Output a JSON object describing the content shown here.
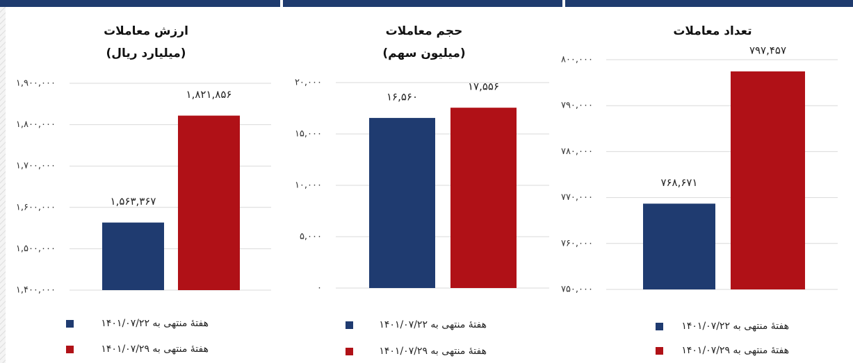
{
  "chart_data": [
    {
      "type": "bar",
      "title": "ارزش معاملات",
      "subtitle": "(میلیارد ریال)",
      "ylim": [
        1400000,
        1900000
      ],
      "yticks": [
        {
          "value": 1400000,
          "label": "۱,۴۰۰,۰۰۰"
        },
        {
          "value": 1500000,
          "label": "۱,۵۰۰,۰۰۰"
        },
        {
          "value": 1600000,
          "label": "۱,۶۰۰,۰۰۰"
        },
        {
          "value": 1700000,
          "label": "۱,۷۰۰,۰۰۰"
        },
        {
          "value": 1800000,
          "label": "۱,۸۰۰,۰۰۰"
        },
        {
          "value": 1900000,
          "label": "۱,۹۰۰,۰۰۰"
        }
      ],
      "grid": true,
      "series": [
        {
          "name": "هفتهٔ منتهی به ۱۴۰۱/۰۷/۲۲",
          "color": "#1f3b70",
          "values": [
            1563367
          ],
          "value_labels": [
            "۱,۵۶۳,۳۶۷"
          ]
        },
        {
          "name": "هفتهٔ منتهی به ۱۴۰۱/۰۷/۲۹",
          "color": "#b01117",
          "values": [
            1821856
          ],
          "value_labels": [
            "۱,۸۲۱,۸۵۶"
          ]
        }
      ]
    },
    {
      "type": "bar",
      "title": "حجم معاملات",
      "subtitle": "(میلیون سهم)",
      "ylim": [
        0,
        20000
      ],
      "yticks": [
        {
          "value": 0,
          "label": "۰"
        },
        {
          "value": 5000,
          "label": "۵,۰۰۰"
        },
        {
          "value": 10000,
          "label": "۱۰,۰۰۰"
        },
        {
          "value": 15000,
          "label": "۱۵,۰۰۰"
        },
        {
          "value": 20000,
          "label": "۲۰,۰۰۰"
        }
      ],
      "grid": true,
      "series": [
        {
          "name": "هفتهٔ منتهی به ۱۴۰۱/۰۷/۲۲",
          "color": "#1f3b70",
          "values": [
            16560
          ],
          "value_labels": [
            "۱۶,۵۶۰"
          ]
        },
        {
          "name": "هفتهٔ منتهی به ۱۴۰۱/۰۷/۲۹",
          "color": "#b01117",
          "values": [
            17556
          ],
          "value_labels": [
            "۱۷,۵۵۶"
          ]
        }
      ]
    },
    {
      "type": "bar",
      "title": "تعداد معاملات",
      "ylim": [
        750000,
        800000
      ],
      "yticks": [
        {
          "value": 750000,
          "label": "۷۵۰,۰۰۰"
        },
        {
          "value": 760000,
          "label": "۷۶۰,۰۰۰"
        },
        {
          "value": 770000,
          "label": "۷۷۰,۰۰۰"
        },
        {
          "value": 780000,
          "label": "۷۸۰,۰۰۰"
        },
        {
          "value": 790000,
          "label": "۷۹۰,۰۰۰"
        },
        {
          "value": 800000,
          "label": "۸۰۰,۰۰۰"
        }
      ],
      "grid": true,
      "series": [
        {
          "name": "هفتهٔ منتهی به ۱۴۰۱/۰۷/۲۲",
          "color": "#1f3b70",
          "values": [
            768671
          ],
          "value_labels": [
            "۷۶۸,۶۷۱"
          ]
        },
        {
          "name": "هفتهٔ منتهی به ۱۴۰۱/۰۷/۲۹",
          "color": "#b01117",
          "values": [
            797457
          ],
          "value_labels": [
            "۷۹۷,۴۵۷"
          ]
        }
      ]
    }
  ]
}
